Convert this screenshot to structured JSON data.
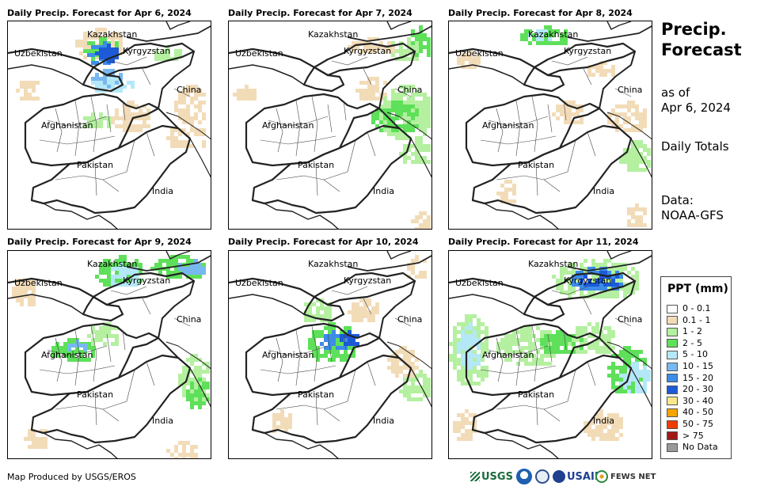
{
  "panels": [
    {
      "title": "Daily Precip. Forecast for Apr 6, 2024"
    },
    {
      "title": "Daily Precip. Forecast for Apr 7, 2024"
    },
    {
      "title": "Daily Precip. Forecast for Apr 8, 2024"
    },
    {
      "title": "Daily Precip. Forecast for Apr 9, 2024"
    },
    {
      "title": "Daily Precip. Forecast for Apr 10, 2024"
    },
    {
      "title": "Daily Precip. Forecast for Apr 11, 2024"
    }
  ],
  "map_labels": {
    "kazakhstan": "Kazakhstan",
    "uzbekistan": "Uzbekistan",
    "kyrgyzstan": "Kyrgyzstan",
    "china": "China",
    "afghanistan": "Afghanistan",
    "pakistan": "Pakistan",
    "india": "India"
  },
  "sidebar": {
    "title_line1": "Precip.",
    "title_line2": "Forecast",
    "asof_line1": "as of",
    "asof_line2": "Apr 6, 2024",
    "totals": "Daily Totals",
    "data_line1": "Data:",
    "data_line2": "NOAA-GFS"
  },
  "legend": {
    "title": "PPT (mm)",
    "items": [
      {
        "label": "0 - 0.1",
        "color": "#ffffff"
      },
      {
        "label": "0.1 - 1",
        "color": "#f2dcb8"
      },
      {
        "label": "1 - 2",
        "color": "#b4f0a0"
      },
      {
        "label": "2 - 5",
        "color": "#5ee05a"
      },
      {
        "label": "5 - 10",
        "color": "#b4e8f8"
      },
      {
        "label": "10 - 15",
        "color": "#78b8f0"
      },
      {
        "label": "15 - 20",
        "color": "#3c8ce8"
      },
      {
        "label": "20 - 30",
        "color": "#1c5ad8"
      },
      {
        "label": "30 - 40",
        "color": "#fce88c"
      },
      {
        "label": "40 - 50",
        "color": "#f8a400"
      },
      {
        "label": "50 - 75",
        "color": "#f03c00"
      },
      {
        "label": "> 75",
        "color": "#a01818"
      },
      {
        "label": "No Data",
        "color": "#999999"
      }
    ]
  },
  "footer": {
    "credit": "Map Produced by USGS/EROS",
    "logo_usgs": "USGS",
    "logo_usaid": "USAID",
    "logo_fewsnet": "FEWS NET"
  }
}
